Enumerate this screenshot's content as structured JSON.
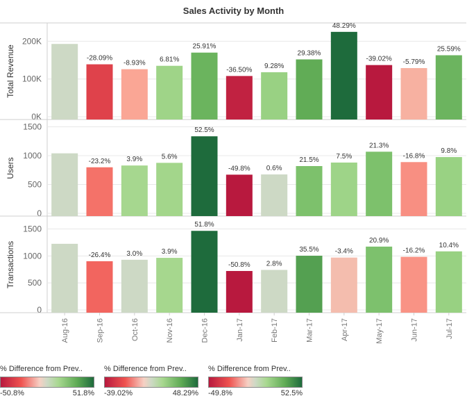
{
  "title": "Sales Activity by Month",
  "chart_data": {
    "type": "bar",
    "categories": [
      "Aug-16",
      "Sep-16",
      "Oct-16",
      "Nov-16",
      "Dec-16",
      "Jan-17",
      "Feb-17",
      "Mar-17",
      "Apr-17",
      "May-17",
      "Jun-17",
      "Jul-17"
    ],
    "panels": [
      {
        "ylabel": "Total Revenue",
        "ylim": [
          0,
          245000
        ],
        "ticks": [
          0,
          100000,
          200000
        ],
        "tick_labels": [
          "0K",
          "100K",
          "200K"
        ],
        "values": [
          193000,
          139000,
          126000,
          135000,
          170000,
          108000,
          118000,
          152000,
          225000,
          137000,
          129000,
          163000
        ],
        "pct_labels": [
          "",
          "-28.09%",
          "-8.93%",
          "6.81%",
          "25.91%",
          "-36.50%",
          "9.28%",
          "29.38%",
          "48.29%",
          "-39.02%",
          "-5.79%",
          "25.59%"
        ],
        "pct": [
          null,
          -28.09,
          -8.93,
          6.81,
          25.91,
          -36.5,
          9.28,
          29.38,
          48.29,
          -39.02,
          -5.79,
          25.59
        ],
        "color_range": [
          -39.02,
          48.29
        ]
      },
      {
        "ylabel": "Users",
        "ylim": [
          0,
          1590
        ],
        "ticks": [
          0,
          500,
          1000,
          1500
        ],
        "tick_labels": [
          "0",
          "500",
          "1000",
          "1500"
        ],
        "values": [
          1040,
          798,
          829,
          875,
          1335,
          670,
          674,
          819,
          880,
          1068,
          888,
          975
        ],
        "pct_labels": [
          "",
          "-23.2%",
          "3.9%",
          "5.6%",
          "52.5%",
          "-49.8%",
          "0.6%",
          "21.5%",
          "7.5%",
          "21.3%",
          "-16.8%",
          "9.8%"
        ],
        "pct": [
          null,
          -23.2,
          3.9,
          5.6,
          52.5,
          -49.8,
          0.6,
          21.5,
          7.5,
          21.3,
          -16.8,
          9.8
        ],
        "color_range": [
          -49.8,
          52.5
        ]
      },
      {
        "ylabel": "Transactions",
        "ylim": [
          0,
          1700
        ],
        "ticks": [
          0,
          500,
          1000,
          1500
        ],
        "tick_labels": [
          "0",
          "500",
          "1000",
          "1500"
        ],
        "values": [
          1225,
          902,
          929,
          965,
          1465,
          721,
          741,
          1004,
          970,
          1173,
          983,
          1085
        ],
        "pct_labels": [
          "",
          "-26.4%",
          "3.0%",
          "3.9%",
          "51.8%",
          "-50.8%",
          "2.8%",
          "35.5%",
          "-3.4%",
          "20.9%",
          "-16.2%",
          "10.4%"
        ],
        "pct": [
          null,
          -26.4,
          3.0,
          3.9,
          51.8,
          -50.8,
          2.8,
          35.5,
          -3.4,
          20.9,
          -16.2,
          10.4
        ],
        "color_range": [
          -50.8,
          51.8
        ]
      }
    ],
    "grid": true,
    "legend_placement": "bottom-left"
  },
  "legends": [
    {
      "title": "% Difference from Prev..",
      "min": "-50.8%",
      "max": "51.8%"
    },
    {
      "title": "% Difference from Prev..",
      "min": "-39.02%",
      "max": "48.29%"
    },
    {
      "title": "% Difference from Prev..",
      "min": "-49.8%",
      "max": "52.5%"
    }
  ],
  "colors": {
    "neg_strong": "#b8193e",
    "neg_mid": "#ef5350",
    "neg_light": "#fba392",
    "neutral": "#cdd9c5",
    "pos_light": "#a8d890",
    "pos_mid": "#5fab55",
    "pos_strong": "#1e6b3c",
    "null_bar": "#cdd9c5",
    "grid": "#e8e8e8",
    "axis": "#cfcfcf"
  }
}
